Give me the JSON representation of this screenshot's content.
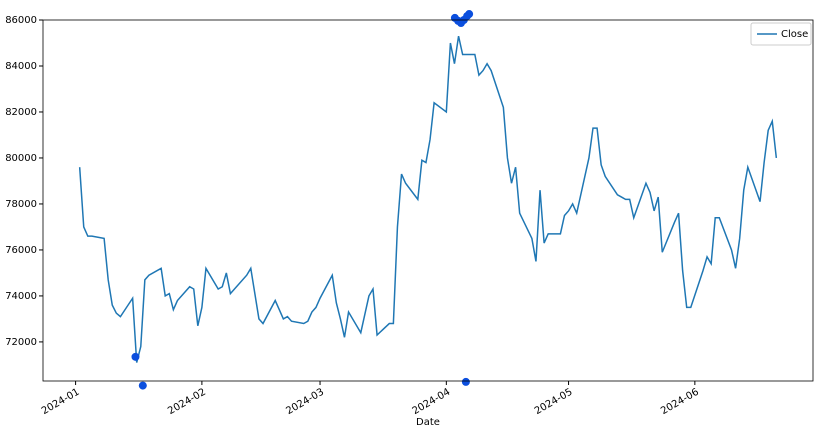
{
  "chart_data": {
    "type": "line",
    "xlabel": "Date",
    "xlim": [
      -8,
      181
    ],
    "xticks": [
      {
        "value": 0,
        "label": "2024-01"
      },
      {
        "value": 31,
        "label": "2024-02"
      },
      {
        "value": 60,
        "label": "2024-03"
      },
      {
        "value": 91,
        "label": "2024-04"
      },
      {
        "value": 121,
        "label": "2024-05"
      },
      {
        "value": 152,
        "label": "2024-06"
      }
    ],
    "ylim": [
      70300,
      86000
    ],
    "yticks": [
      72000,
      74000,
      76000,
      78000,
      80000,
      82000,
      84000,
      86000
    ],
    "legend": "upper right",
    "series": [
      {
        "name": "Close",
        "color": "#1f77b4",
        "x": [
          1,
          2,
          3,
          4,
          7,
          8,
          9,
          10,
          11,
          14,
          15,
          16,
          17,
          18,
          21,
          22,
          23,
          24,
          25,
          28,
          29,
          30,
          31,
          32,
          35,
          36,
          37,
          38,
          39,
          42,
          43,
          44,
          45,
          46,
          49,
          50,
          51,
          52,
          53,
          56,
          57,
          58,
          59,
          60,
          63,
          64,
          65,
          66,
          67,
          70,
          71,
          72,
          73,
          74,
          77,
          78,
          79,
          80,
          81,
          84,
          85,
          86,
          87,
          88,
          91,
          92,
          93,
          94,
          95,
          98,
          99,
          100,
          101,
          102,
          105,
          106,
          107,
          108,
          109,
          112,
          113,
          114,
          115,
          116,
          119,
          120,
          121,
          122,
          123,
          126,
          127,
          128,
          129,
          130,
          133,
          134,
          135,
          136,
          137,
          140,
          141,
          142,
          143,
          144,
          147,
          148,
          149,
          150,
          151,
          154,
          155,
          156,
          157,
          158,
          161,
          162,
          163,
          164,
          165,
          168,
          169,
          170,
          171,
          172
        ],
        "values": [
          79600,
          77000,
          76600,
          76600,
          76500,
          74700,
          73600,
          73250,
          73100,
          73900,
          71100,
          71800,
          74700,
          74900,
          75200,
          74000,
          74100,
          73400,
          73800,
          74400,
          74300,
          72700,
          73500,
          75200,
          74300,
          74400,
          75000,
          74100,
          74300,
          74900,
          75200,
          74100,
          73000,
          72800,
          73800,
          73400,
          73000,
          73100,
          72900,
          72800,
          72900,
          73300,
          73500,
          73900,
          74900,
          73700,
          73000,
          72200,
          73300,
          72400,
          73200,
          74000,
          74300,
          72300,
          72800,
          72800,
          77000,
          79300,
          78900,
          78200,
          79900,
          79800,
          80800,
          82400,
          82000,
          85000,
          84100,
          85300,
          84500,
          84500,
          83600,
          83800,
          84100,
          83800,
          82200,
          80000,
          78900,
          79600,
          77600,
          76500,
          75500,
          78600,
          76300,
          76700,
          76700,
          77500,
          77700,
          78000,
          77600,
          80000,
          81300,
          81300,
          79700,
          79200,
          78400,
          78300,
          78200,
          78200,
          77400,
          78900,
          78500,
          77700,
          78300,
          75900,
          77200,
          77600,
          75100,
          73500,
          73500,
          75100,
          75700,
          75400,
          77400,
          77400,
          76000,
          75200,
          76500,
          78600,
          79600,
          78100,
          79800,
          81200,
          81600,
          80000
        ]
      }
    ],
    "markers": {
      "color": "#0b4fde",
      "x": [
        14.7,
        16.5,
        93.1,
        93.9,
        94.6,
        95.3,
        96.1,
        96.6,
        95.8
      ],
      "values": [
        71350,
        70100,
        86090,
        85960,
        85870,
        86000,
        86170,
        86260,
        70260
      ]
    }
  }
}
